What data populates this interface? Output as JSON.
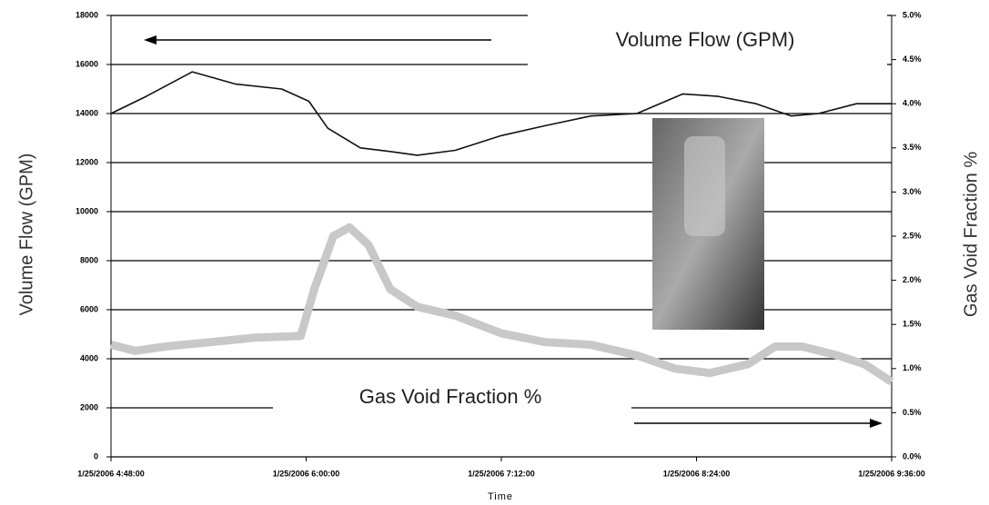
{
  "chart_data": {
    "type": "line",
    "xlabel": "Time",
    "ylabel": "Volume Flow (GPM)",
    "y2label": "Gas Void Fraction %",
    "xlim": [
      0,
      288
    ],
    "xticks": [
      {
        "value": 0,
        "label": "1/25/2006 4:48:00"
      },
      {
        "value": 72,
        "label": "1/25/2006 6:00:00"
      },
      {
        "value": 144,
        "label": "1/25/2006 7:12:00"
      },
      {
        "value": 216,
        "label": "1/25/2006 8:24:00"
      },
      {
        "value": 288,
        "label": "1/25/2006 9:36:00"
      }
    ],
    "ylim": [
      0,
      18000
    ],
    "yticks": [
      0,
      2000,
      4000,
      6000,
      8000,
      10000,
      12000,
      14000,
      16000,
      18000
    ],
    "y2lim": [
      0,
      5
    ],
    "y2ticks": [
      {
        "value": 0,
        "label": "0.0%"
      },
      {
        "value": 0.5,
        "label": "0.5%"
      },
      {
        "value": 1,
        "label": "1.0%"
      },
      {
        "value": 1.5,
        "label": "1.5%"
      },
      {
        "value": 2,
        "label": "2.0%"
      },
      {
        "value": 2.5,
        "label": "2.5%"
      },
      {
        "value": 3,
        "label": "3.0%"
      },
      {
        "value": 3.5,
        "label": "3.5%"
      },
      {
        "value": 4,
        "label": "4.0%"
      },
      {
        "value": 4.5,
        "label": "4.5%"
      },
      {
        "value": 5,
        "label": "5.0%"
      }
    ],
    "grid": true,
    "series": [
      {
        "name": "Gas Void Fraction %",
        "color": "#c8c8c8",
        "axis": "y2",
        "x": [
          0,
          9,
          20,
          37,
          53,
          70,
          75,
          82,
          88,
          95,
          103,
          113,
          127,
          144,
          160,
          177,
          194,
          208,
          221,
          235,
          245,
          255,
          268,
          278,
          288
        ],
        "values": [
          1.27,
          1.2,
          1.25,
          1.3,
          1.35,
          1.37,
          1.9,
          2.5,
          2.6,
          2.4,
          1.9,
          1.7,
          1.6,
          1.4,
          1.3,
          1.27,
          1.15,
          1.0,
          0.95,
          1.05,
          1.25,
          1.25,
          1.15,
          1.05,
          0.85
        ]
      },
      {
        "name": "Volume Flow (GPM)",
        "color": "#111111",
        "x": [
          0,
          13,
          30,
          46,
          63,
          73,
          80,
          92,
          103,
          113,
          127,
          144,
          160,
          177,
          194,
          211,
          224,
          238,
          251,
          261,
          275,
          288
        ],
        "values": [
          14000,
          14700,
          15700,
          15200,
          15000,
          14500,
          13400,
          12600,
          12450,
          12300,
          12500,
          13100,
          13500,
          13900,
          14000,
          14800,
          14700,
          14400,
          13900,
          14000,
          14400,
          14400
        ]
      }
    ]
  }
}
